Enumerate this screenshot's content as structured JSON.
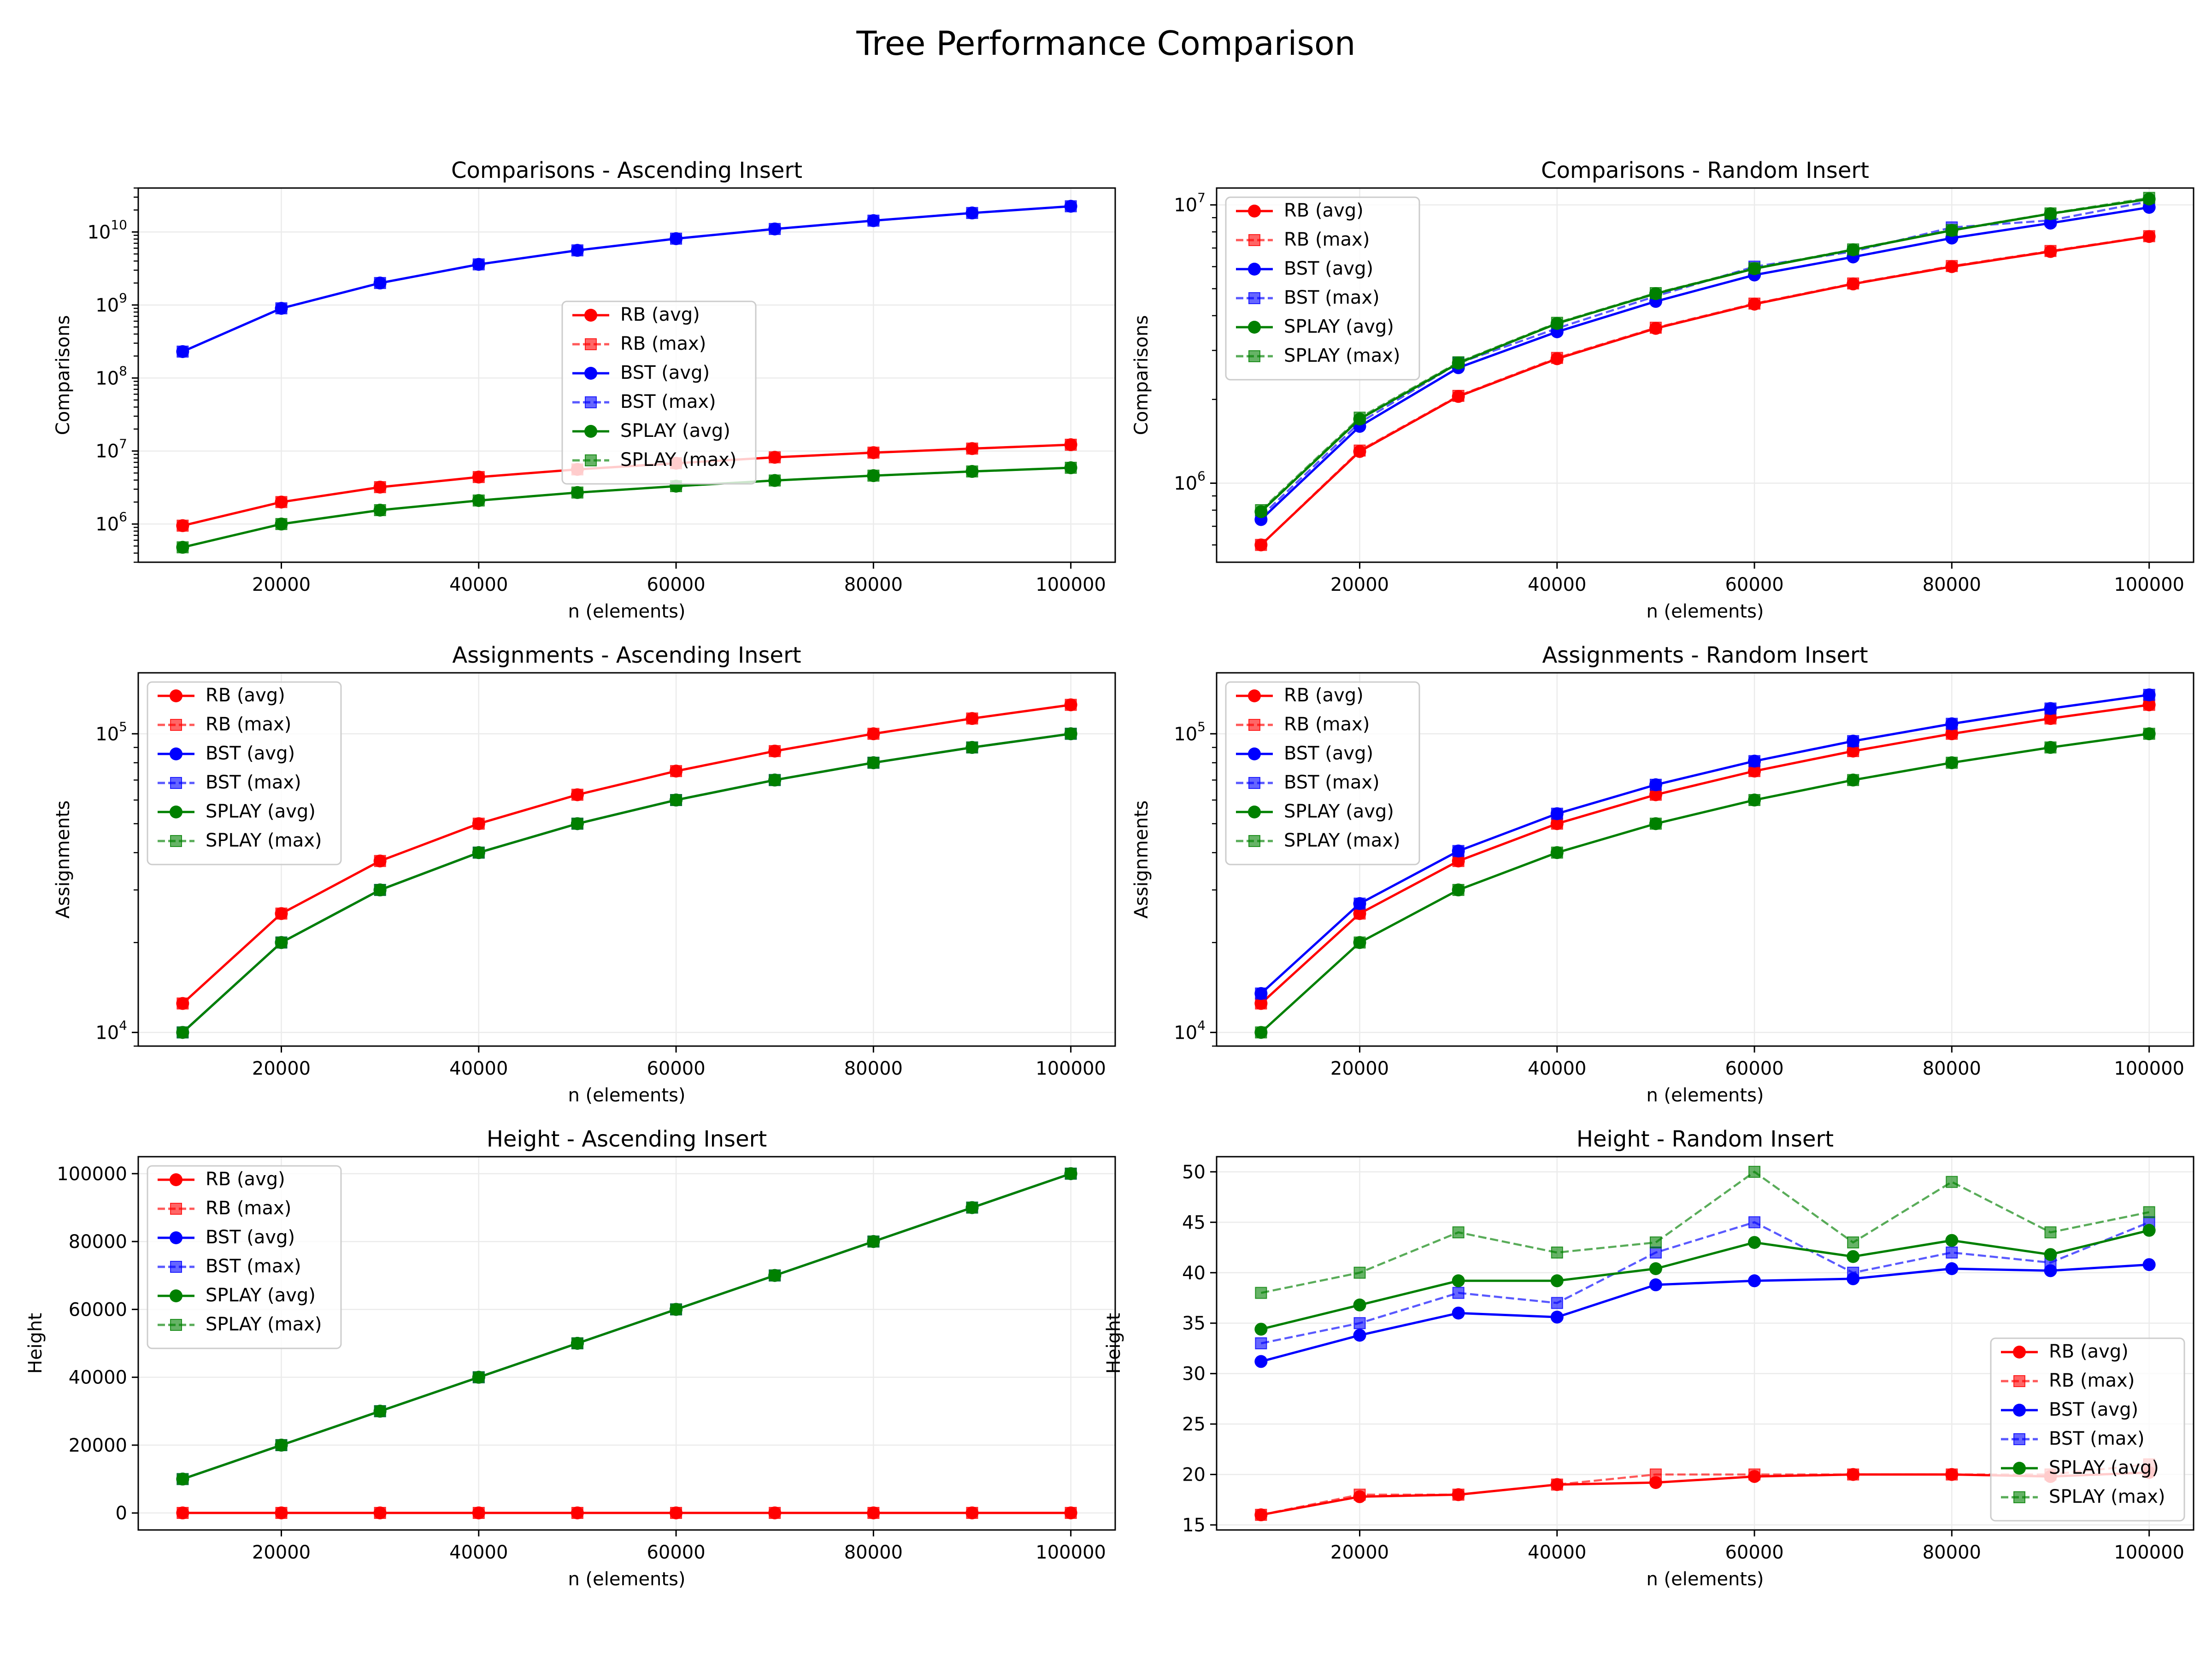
{
  "title": "Tree Performance Comparison",
  "colors": {
    "RB": "#ff0000",
    "BST": "#0000ff",
    "SPLAY": "#008000"
  },
  "chart_data": [
    {
      "type": "line",
      "title": "Comparisons - Ascending Insert",
      "xlabel": "n (elements)",
      "ylabel": "Comparisons",
      "yscale": "log",
      "xlim": [
        5500,
        104500
      ],
      "ylim": [
        300000,
        40000000000
      ],
      "x": [
        10000,
        20000,
        30000,
        40000,
        50000,
        60000,
        70000,
        80000,
        90000,
        100000
      ],
      "xticks": [
        "20000",
        "40000",
        "60000",
        "80000",
        "100000"
      ],
      "yticks": [
        {
          "base": "10",
          "exp": "6"
        },
        {
          "base": "10",
          "exp": "7"
        },
        {
          "base": "10",
          "exp": "8"
        },
        {
          "base": "10",
          "exp": "9"
        },
        {
          "base": "10",
          "exp": "10"
        }
      ],
      "legend": "center",
      "grid": true,
      "series": [
        {
          "name": "RB (avg)",
          "color": "#ff0000",
          "style": "avg",
          "values": [
            950000,
            2000000,
            3200000,
            4400000,
            5600000,
            6800000,
            8200000,
            9500000,
            10800000,
            12200000
          ]
        },
        {
          "name": "RB (max)",
          "color": "#ff0000",
          "style": "max",
          "values": [
            950000,
            2000000,
            3200000,
            4400000,
            5600000,
            6800000,
            8200000,
            9500000,
            10800000,
            12200000
          ]
        },
        {
          "name": "BST (avg)",
          "color": "#0000ff",
          "style": "avg",
          "values": [
            230000000,
            900000000,
            2000000000,
            3600000000,
            5600000000,
            8100000000,
            11000000000,
            14300000000,
            18200000000,
            22500000000
          ]
        },
        {
          "name": "BST (max)",
          "color": "#0000ff",
          "style": "max",
          "values": [
            230000000,
            900000000,
            2000000000,
            3600000000,
            5600000000,
            8100000000,
            11000000000,
            14300000000,
            18200000000,
            22500000000
          ]
        },
        {
          "name": "SPLAY (avg)",
          "color": "#008000",
          "style": "avg",
          "values": [
            480000,
            1000000,
            1550000,
            2100000,
            2700000,
            3300000,
            3950000,
            4600000,
            5250000,
            5900000
          ]
        },
        {
          "name": "SPLAY (max)",
          "color": "#008000",
          "style": "max",
          "values": [
            480000,
            1000000,
            1550000,
            2100000,
            2700000,
            3300000,
            3950000,
            4600000,
            5250000,
            5900000
          ]
        }
      ]
    },
    {
      "type": "line",
      "title": "Comparisons - Random Insert",
      "xlabel": "n (elements)",
      "ylabel": "Comparisons",
      "yscale": "log",
      "xlim": [
        5500,
        104500
      ],
      "ylim": [
        520000,
        11500000
      ],
      "x": [
        10000,
        20000,
        30000,
        40000,
        50000,
        60000,
        70000,
        80000,
        90000,
        100000
      ],
      "xticks": [
        "20000",
        "40000",
        "60000",
        "80000",
        "100000"
      ],
      "yticks": [
        {
          "base": "10",
          "exp": "6"
        },
        {
          "base": "10",
          "exp": "7"
        }
      ],
      "legend": "upper left",
      "grid": true,
      "series": [
        {
          "name": "RB (avg)",
          "color": "#ff0000",
          "style": "avg",
          "values": [
            600000,
            1300000,
            2050000,
            2800000,
            3600000,
            4400000,
            5200000,
            6000000,
            6800000,
            7700000
          ]
        },
        {
          "name": "RB (max)",
          "color": "#ff0000",
          "style": "max",
          "values": [
            600000,
            1310000,
            2060000,
            2820000,
            3620000,
            4420000,
            5220000,
            6030000,
            6830000,
            7720000
          ]
        },
        {
          "name": "BST (avg)",
          "color": "#0000ff",
          "style": "avg",
          "values": [
            740000,
            1600000,
            2600000,
            3500000,
            4500000,
            5600000,
            6500000,
            7600000,
            8600000,
            9800000
          ]
        },
        {
          "name": "BST (max)",
          "color": "#0000ff",
          "style": "max",
          "values": [
            760000,
            1650000,
            2700000,
            3600000,
            4700000,
            6000000,
            6800000,
            8300000,
            8800000,
            10300000
          ]
        },
        {
          "name": "SPLAY (avg)",
          "color": "#008000",
          "style": "avg",
          "values": [
            790000,
            1700000,
            2700000,
            3750000,
            4800000,
            5900000,
            6900000,
            8100000,
            9300000,
            10500000
          ]
        },
        {
          "name": "SPLAY (max)",
          "color": "#008000",
          "style": "max",
          "values": [
            800000,
            1720000,
            2720000,
            3770000,
            4820000,
            5920000,
            6920000,
            8120000,
            9320000,
            10600000
          ]
        }
      ]
    },
    {
      "type": "line",
      "title": "Assignments - Ascending Insert",
      "xlabel": "n (elements)",
      "ylabel": "Assignments",
      "yscale": "log",
      "xlim": [
        5500,
        104500
      ],
      "ylim": [
        9000,
        160000
      ],
      "x": [
        10000,
        20000,
        30000,
        40000,
        50000,
        60000,
        70000,
        80000,
        90000,
        100000
      ],
      "xticks": [
        "20000",
        "40000",
        "60000",
        "80000",
        "100000"
      ],
      "yticks": [
        {
          "base": "10",
          "exp": "4"
        },
        {
          "base": "10",
          "exp": "5"
        }
      ],
      "legend": "upper left",
      "grid": true,
      "series": [
        {
          "name": "RB (avg)",
          "color": "#ff0000",
          "style": "avg",
          "values": [
            12500,
            25000,
            37500,
            50000,
            62500,
            75000,
            87500,
            100000,
            112500,
            125000
          ]
        },
        {
          "name": "RB (max)",
          "color": "#ff0000",
          "style": "max",
          "values": [
            12500,
            25000,
            37500,
            50000,
            62500,
            75000,
            87500,
            100000,
            112500,
            125000
          ]
        },
        {
          "name": "BST (avg)",
          "color": "#0000ff",
          "style": "avg",
          "values": [
            10000,
            20000,
            30000,
            40000,
            50000,
            60000,
            70000,
            80000,
            90000,
            100000
          ]
        },
        {
          "name": "BST (max)",
          "color": "#0000ff",
          "style": "max",
          "values": [
            10000,
            20000,
            30000,
            40000,
            50000,
            60000,
            70000,
            80000,
            90000,
            100000
          ]
        },
        {
          "name": "SPLAY (avg)",
          "color": "#008000",
          "style": "avg",
          "values": [
            10000,
            20000,
            30000,
            40000,
            50000,
            60000,
            70000,
            80000,
            90000,
            100000
          ]
        },
        {
          "name": "SPLAY (max)",
          "color": "#008000",
          "style": "max",
          "values": [
            10000,
            20000,
            30000,
            40000,
            50000,
            60000,
            70000,
            80000,
            90000,
            100000
          ]
        }
      ]
    },
    {
      "type": "line",
      "title": "Assignments - Random Insert",
      "xlabel": "n (elements)",
      "ylabel": "Assignments",
      "yscale": "log",
      "xlim": [
        5500,
        104500
      ],
      "ylim": [
        9000,
        160000
      ],
      "x": [
        10000,
        20000,
        30000,
        40000,
        50000,
        60000,
        70000,
        80000,
        90000,
        100000
      ],
      "xticks": [
        "20000",
        "40000",
        "60000",
        "80000",
        "100000"
      ],
      "yticks": [
        {
          "base": "10",
          "exp": "4"
        },
        {
          "base": "10",
          "exp": "5"
        }
      ],
      "legend": "upper left",
      "grid": true,
      "series": [
        {
          "name": "RB (avg)",
          "color": "#ff0000",
          "style": "avg",
          "values": [
            12500,
            25000,
            37500,
            50000,
            62500,
            75000,
            87500,
            100000,
            112500,
            125000
          ]
        },
        {
          "name": "RB (max)",
          "color": "#ff0000",
          "style": "max",
          "values": [
            12500,
            25000,
            37500,
            50000,
            62500,
            75000,
            87500,
            100000,
            112500,
            125000
          ]
        },
        {
          "name": "BST (avg)",
          "color": "#0000ff",
          "style": "avg",
          "values": [
            13500,
            27000,
            40500,
            54000,
            67500,
            81000,
            94500,
            108000,
            121500,
            135000
          ]
        },
        {
          "name": "BST (max)",
          "color": "#0000ff",
          "style": "max",
          "values": [
            13500,
            27000,
            40500,
            54000,
            67500,
            81000,
            94500,
            108000,
            121500,
            135000
          ]
        },
        {
          "name": "SPLAY (avg)",
          "color": "#008000",
          "style": "avg",
          "values": [
            10000,
            20000,
            30000,
            40000,
            50000,
            60000,
            70000,
            80000,
            90000,
            100000
          ]
        },
        {
          "name": "SPLAY (max)",
          "color": "#008000",
          "style": "max",
          "values": [
            10000,
            20000,
            30000,
            40000,
            50000,
            60000,
            70000,
            80000,
            90000,
            100000
          ]
        }
      ]
    },
    {
      "type": "line",
      "title": "Height - Ascending Insert",
      "xlabel": "n (elements)",
      "ylabel": "Height",
      "yscale": "linear",
      "xlim": [
        5500,
        104500
      ],
      "ylim": [
        -5000,
        105000
      ],
      "x": [
        10000,
        20000,
        30000,
        40000,
        50000,
        60000,
        70000,
        80000,
        90000,
        100000
      ],
      "xticks": [
        "20000",
        "40000",
        "60000",
        "80000",
        "100000"
      ],
      "yticks": [
        "0",
        "20000",
        "40000",
        "60000",
        "80000",
        "100000"
      ],
      "legend": "upper left",
      "grid": true,
      "series": [
        {
          "name": "RB (avg)",
          "color": "#ff0000",
          "style": "avg",
          "values": [
            24,
            26,
            27,
            28,
            29,
            30,
            30,
            30,
            31,
            31
          ]
        },
        {
          "name": "RB (max)",
          "color": "#ff0000",
          "style": "max",
          "values": [
            24,
            26,
            27,
            28,
            29,
            30,
            30,
            30,
            31,
            31
          ]
        },
        {
          "name": "BST (avg)",
          "color": "#0000ff",
          "style": "avg",
          "values": [
            10000,
            20000,
            30000,
            40000,
            50000,
            60000,
            70000,
            80000,
            90000,
            100000
          ]
        },
        {
          "name": "BST (max)",
          "color": "#0000ff",
          "style": "max",
          "values": [
            10000,
            20000,
            30000,
            40000,
            50000,
            60000,
            70000,
            80000,
            90000,
            100000
          ]
        },
        {
          "name": "SPLAY (avg)",
          "color": "#008000",
          "style": "avg",
          "values": [
            10000,
            20000,
            30000,
            40000,
            50000,
            60000,
            70000,
            80000,
            90000,
            100000
          ]
        },
        {
          "name": "SPLAY (max)",
          "color": "#008000",
          "style": "max",
          "values": [
            10000,
            20000,
            30000,
            40000,
            50000,
            60000,
            70000,
            80000,
            90000,
            100000
          ]
        }
      ]
    },
    {
      "type": "line",
      "title": "Height - Random Insert",
      "xlabel": "n (elements)",
      "ylabel": "Height",
      "yscale": "linear",
      "xlim": [
        5500,
        104500
      ],
      "ylim": [
        14.5,
        51.5
      ],
      "x": [
        10000,
        20000,
        30000,
        40000,
        50000,
        60000,
        70000,
        80000,
        90000,
        100000
      ],
      "xticks": [
        "20000",
        "40000",
        "60000",
        "80000",
        "100000"
      ],
      "yticks": [
        "15",
        "20",
        "25",
        "30",
        "35",
        "40",
        "45",
        "50"
      ],
      "legend": "lower right",
      "grid": true,
      "series": [
        {
          "name": "RB (avg)",
          "color": "#ff0000",
          "style": "avg",
          "values": [
            16,
            17.8,
            18,
            19,
            19.2,
            19.8,
            20,
            20,
            19.8,
            20.2
          ]
        },
        {
          "name": "RB (max)",
          "color": "#ff0000",
          "style": "max",
          "values": [
            16,
            18,
            18,
            19,
            20,
            20,
            20,
            20,
            20,
            21
          ]
        },
        {
          "name": "BST (avg)",
          "color": "#0000ff",
          "style": "avg",
          "values": [
            31.2,
            33.8,
            36,
            35.6,
            38.8,
            39.2,
            39.4,
            40.4,
            40.2,
            40.8
          ]
        },
        {
          "name": "BST (max)",
          "color": "#0000ff",
          "style": "max",
          "values": [
            33,
            35,
            38,
            37,
            42,
            45,
            40,
            42,
            41,
            45
          ]
        },
        {
          "name": "SPLAY (avg)",
          "color": "#008000",
          "style": "avg",
          "values": [
            34.4,
            36.8,
            39.2,
            39.2,
            40.4,
            43,
            41.6,
            43.2,
            41.8,
            44.2
          ]
        },
        {
          "name": "SPLAY (max)",
          "color": "#008000",
          "style": "max",
          "values": [
            38,
            40,
            44,
            42,
            43,
            50,
            43,
            49,
            44,
            46
          ]
        }
      ]
    }
  ]
}
